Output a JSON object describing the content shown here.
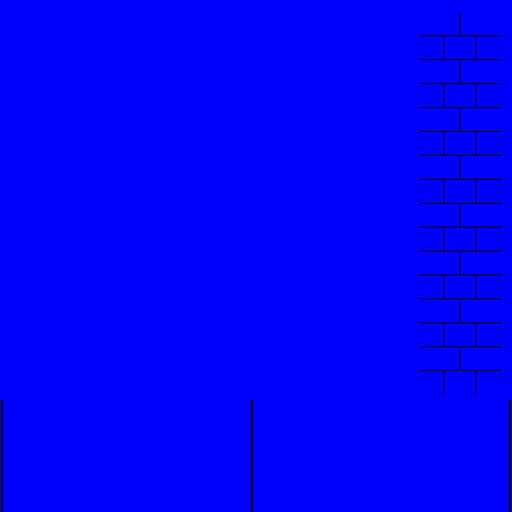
{
  "colors": {
    "background": "#0000ff",
    "line": "#000000"
  },
  "scene": {
    "brick_wall": {
      "side": "right",
      "rows": 16
    },
    "floor_dividers": 3
  }
}
